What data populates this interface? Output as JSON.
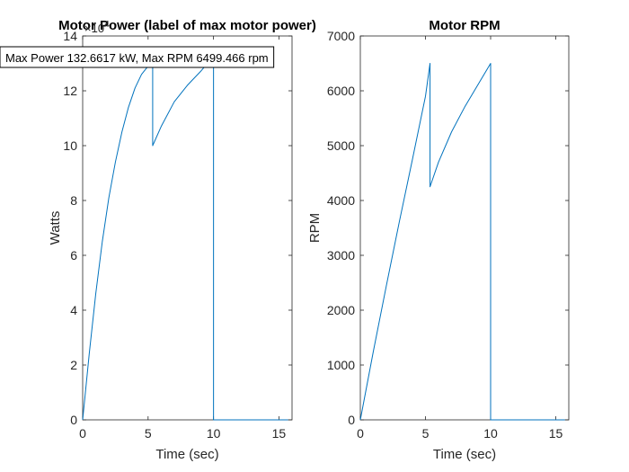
{
  "chart_data": [
    {
      "type": "line",
      "title": "Motor Power (label of max motor power)",
      "xlabel": "Time (sec)",
      "ylabel": "Watts",
      "y_exponent_label": "×10^4",
      "xlim": [
        0,
        16
      ],
      "ylim": [
        0,
        14
      ],
      "xticks": [
        0,
        5,
        10,
        15
      ],
      "yticks": [
        0,
        2,
        4,
        6,
        8,
        10,
        12,
        14
      ],
      "annotation": "Max Power 132.6617 kW, Max RPM 6499.466 rpm",
      "grid": false,
      "series": [
        {
          "color": "#0072BD",
          "x": [
            0,
            0.5,
            1,
            1.5,
            2,
            2.5,
            3,
            3.5,
            4,
            4.5,
            5,
            5.35,
            5.35,
            6,
            7,
            8,
            9,
            10,
            10,
            11,
            12,
            13,
            14,
            15,
            15.7
          ],
          "y": [
            0,
            2.4,
            4.6,
            6.5,
            8.1,
            9.4,
            10.5,
            11.4,
            12.1,
            12.6,
            12.9,
            13.26,
            10.0,
            10.7,
            11.6,
            12.2,
            12.7,
            13.26,
            0,
            0,
            0,
            0,
            0,
            0,
            0
          ]
        }
      ]
    },
    {
      "type": "line",
      "title": "Motor RPM",
      "xlabel": "Time (sec)",
      "ylabel": "RPM",
      "xlim": [
        0,
        16
      ],
      "ylim": [
        0,
        7000
      ],
      "xticks": [
        0,
        5,
        10,
        15
      ],
      "yticks": [
        0,
        1000,
        2000,
        3000,
        4000,
        5000,
        6000,
        7000
      ],
      "grid": false,
      "series": [
        {
          "color": "#0072BD",
          "x": [
            0,
            1,
            2,
            3,
            4,
            5,
            5.35,
            5.35,
            6,
            7,
            8,
            9,
            10,
            10,
            11,
            12,
            13,
            14,
            15,
            15.7
          ],
          "y": [
            0,
            1250,
            2450,
            3620,
            4750,
            5900,
            6500,
            4250,
            4700,
            5250,
            5700,
            6100,
            6500,
            0,
            0,
            0,
            0,
            0,
            0,
            0
          ]
        }
      ]
    }
  ]
}
